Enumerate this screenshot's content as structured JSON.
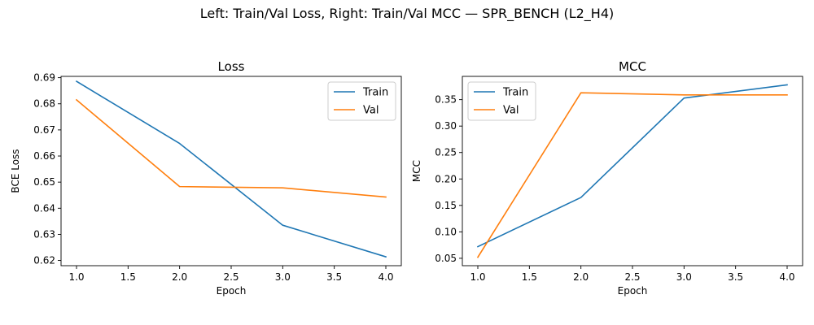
{
  "figure": {
    "suptitle": "Left: Train/Val Loss, Right: Train/Val MCC — SPR_BENCH (L2_H4)"
  },
  "colors": {
    "train": "#1f77b4",
    "val": "#ff7f0e"
  },
  "chart_data": [
    {
      "type": "line",
      "title": "Loss",
      "xlabel": "Epoch",
      "ylabel": "BCE Loss",
      "x": [
        1.0,
        2.0,
        3.0,
        4.0
      ],
      "xlim": [
        0.85,
        4.15
      ],
      "ylim": [
        0.618,
        0.6905
      ],
      "xticks": [
        1.0,
        1.5,
        2.0,
        2.5,
        3.0,
        3.5,
        4.0
      ],
      "xtick_labels": [
        "1.0",
        "1.5",
        "2.0",
        "2.5",
        "3.0",
        "3.5",
        "4.0"
      ],
      "yticks": [
        0.62,
        0.63,
        0.64,
        0.65,
        0.66,
        0.67,
        0.68,
        0.69
      ],
      "ytick_labels": [
        "0.62",
        "0.63",
        "0.64",
        "0.65",
        "0.66",
        "0.67",
        "0.68",
        "0.69"
      ],
      "grid": false,
      "legend": "upper right",
      "series": [
        {
          "name": "Train",
          "color": "#1f77b4",
          "values": [
            0.6886,
            0.6648,
            0.6335,
            0.6214
          ]
        },
        {
          "name": "Val",
          "color": "#ff7f0e",
          "values": [
            0.6815,
            0.6483,
            0.6478,
            0.6443
          ]
        }
      ]
    },
    {
      "type": "line",
      "title": "MCC",
      "xlabel": "Epoch",
      "ylabel": "MCC",
      "x": [
        1.0,
        2.0,
        3.0,
        4.0
      ],
      "xlim": [
        0.85,
        4.15
      ],
      "ylim": [
        0.036,
        0.394
      ],
      "xticks": [
        1.0,
        1.5,
        2.0,
        2.5,
        3.0,
        3.5,
        4.0
      ],
      "xtick_labels": [
        "1.0",
        "1.5",
        "2.0",
        "2.5",
        "3.0",
        "3.5",
        "4.0"
      ],
      "yticks": [
        0.05,
        0.1,
        0.15,
        0.2,
        0.25,
        0.3,
        0.35
      ],
      "ytick_labels": [
        "0.05",
        "0.10",
        "0.15",
        "0.20",
        "0.25",
        "0.30",
        "0.35"
      ],
      "grid": false,
      "legend": "upper left",
      "series": [
        {
          "name": "Train",
          "color": "#1f77b4",
          "values": [
            0.072,
            0.165,
            0.353,
            0.378
          ]
        },
        {
          "name": "Val",
          "color": "#ff7f0e",
          "values": [
            0.052,
            0.363,
            0.359,
            0.359
          ]
        }
      ]
    }
  ]
}
